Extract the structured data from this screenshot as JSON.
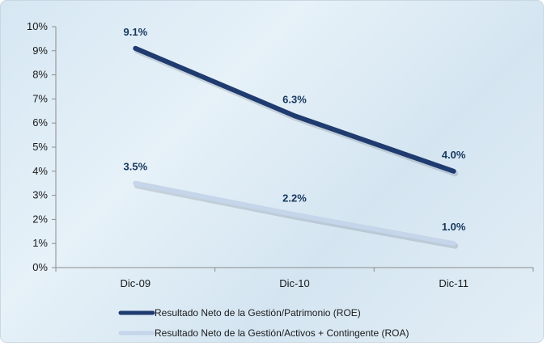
{
  "chart_data": {
    "type": "line",
    "categories": [
      "Dic-09",
      "Dic-10",
      "Dic-11"
    ],
    "ylim": [
      0,
      10
    ],
    "yticks": [
      "0%",
      "1%",
      "2%",
      "3%",
      "4%",
      "5%",
      "6%",
      "7%",
      "8%",
      "9%",
      "10%"
    ],
    "grid": false,
    "legend_position": "bottom",
    "series": [
      {
        "name": "Resultado Neto de la Gestión/Patrimonio  (ROE)",
        "values": [
          9.1,
          6.3,
          4.0
        ],
        "labels": [
          "9.1%",
          "6.3%",
          "4.0%"
        ],
        "color": "#1f3b6f"
      },
      {
        "name": "Resultado Neto de la Gestión/Activos + Contingente (ROA)",
        "values": [
          3.5,
          2.2,
          1.0
        ],
        "labels": [
          "3.5%",
          "2.2%",
          "1.0%"
        ],
        "color": "#c5d5ea"
      }
    ]
  }
}
